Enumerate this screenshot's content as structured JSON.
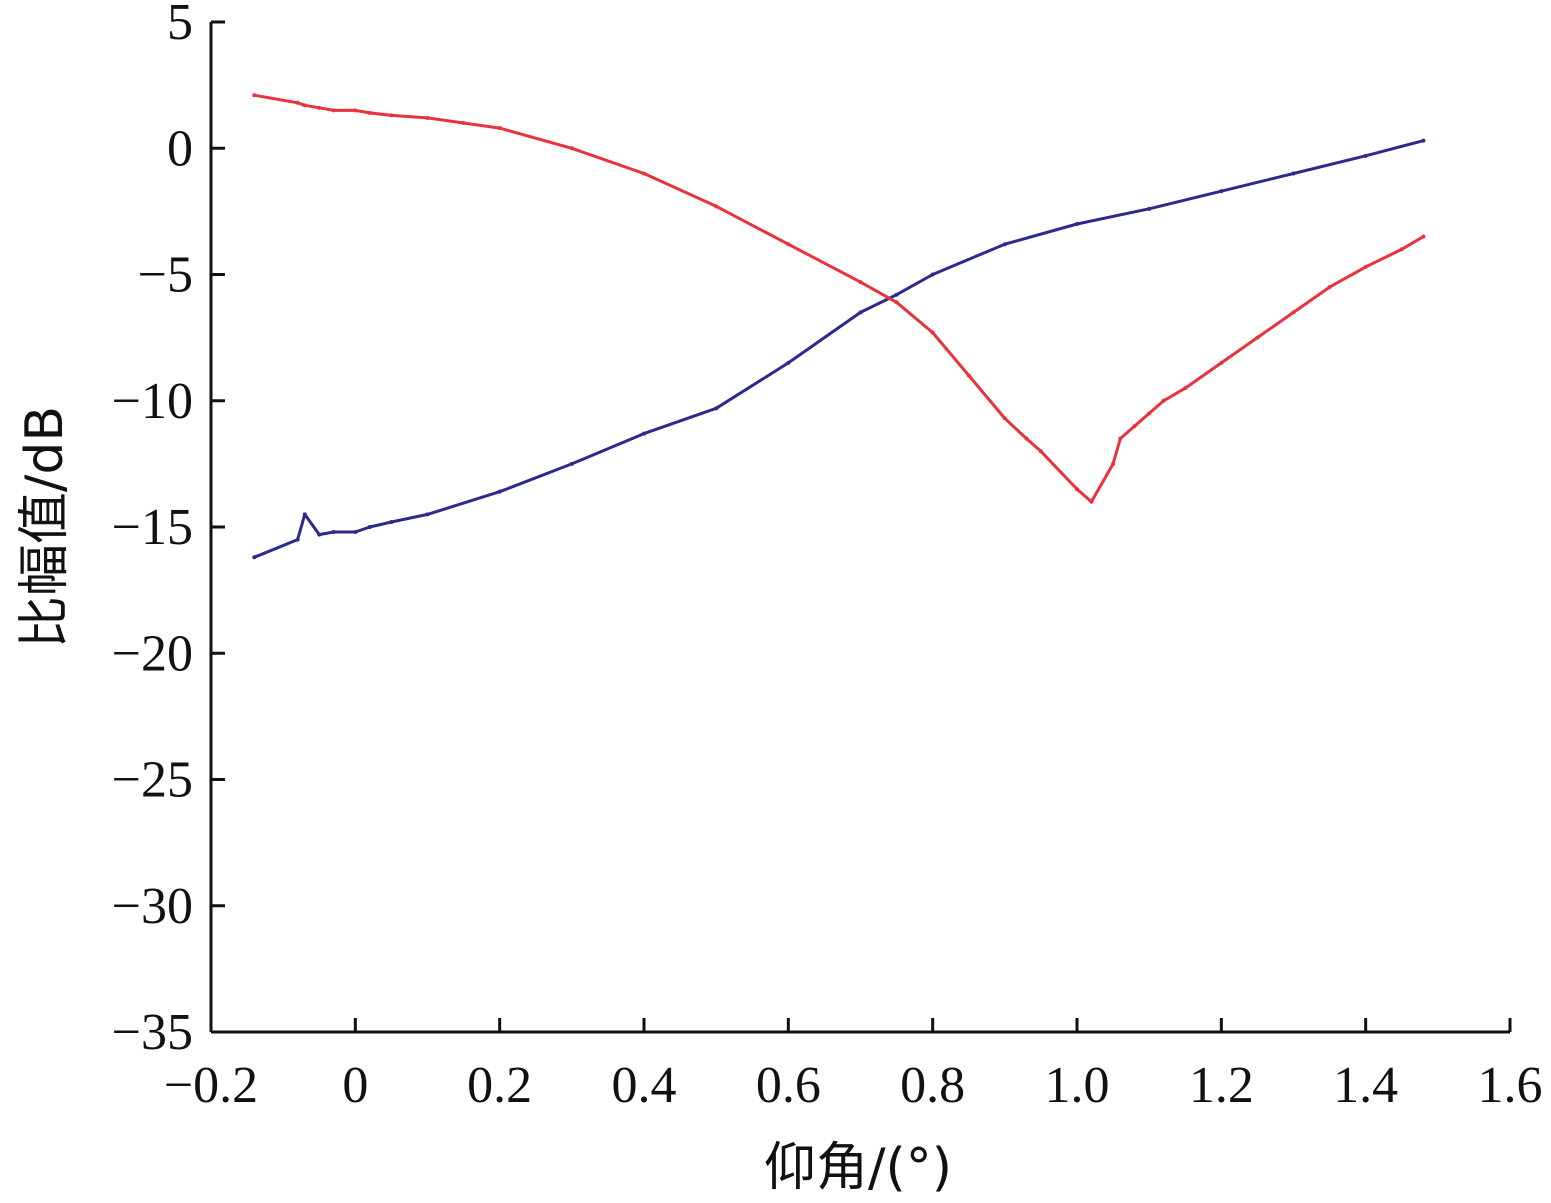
{
  "chart_data": {
    "type": "line",
    "title": "",
    "xlabel": "仰角/(°)",
    "ylabel": "比幅值/dB",
    "xlim": [
      -0.2,
      1.6
    ],
    "ylim": [
      -35,
      5
    ],
    "x_ticks": [
      -0.2,
      0,
      0.2,
      0.4,
      0.6,
      0.8,
      1.0,
      1.2,
      1.4,
      1.6
    ],
    "x_tick_labels": [
      "−0.2",
      "0",
      "0.2",
      "0.4",
      "0.6",
      "0.8",
      "1.0",
      "1.2",
      "1.4",
      "1.6"
    ],
    "y_ticks": [
      5,
      0,
      -5,
      -10,
      -15,
      -20,
      -25,
      -30,
      -35
    ],
    "y_tick_labels": [
      "5",
      "0",
      "−5",
      "−10",
      "−15",
      "−20",
      "−25",
      "−30",
      "−35"
    ],
    "grid": false,
    "legend": "none",
    "series": [
      {
        "color": "#2e2a8c",
        "x": [
          -0.14,
          -0.08,
          -0.07,
          -0.05,
          -0.03,
          0.0,
          0.02,
          0.05,
          0.1,
          0.2,
          0.3,
          0.4,
          0.5,
          0.6,
          0.7,
          0.75,
          0.8,
          0.9,
          1.0,
          1.1,
          1.2,
          1.3,
          1.4,
          1.48
        ],
        "y": [
          -16.2,
          -15.5,
          -14.5,
          -15.3,
          -15.2,
          -15.2,
          -15.0,
          -14.8,
          -14.5,
          -13.6,
          -12.5,
          -11.3,
          -10.3,
          -8.5,
          -6.5,
          -5.8,
          -5.0,
          -3.8,
          -3.0,
          -2.4,
          -1.7,
          -1.0,
          -0.3,
          0.3
        ]
      },
      {
        "color": "#e8333c",
        "x": [
          -0.14,
          -0.08,
          -0.07,
          -0.05,
          -0.03,
          0.0,
          0.02,
          0.05,
          0.1,
          0.15,
          0.2,
          0.3,
          0.4,
          0.5,
          0.6,
          0.7,
          0.75,
          0.8,
          0.85,
          0.9,
          0.93,
          0.95,
          1.0,
          1.02,
          1.05,
          1.06,
          1.08,
          1.1,
          1.12,
          1.15,
          1.2,
          1.25,
          1.3,
          1.35,
          1.4,
          1.45,
          1.48
        ],
        "y": [
          2.1,
          1.8,
          1.7,
          1.6,
          1.5,
          1.5,
          1.4,
          1.3,
          1.2,
          1.0,
          0.8,
          0.0,
          -1.0,
          -2.3,
          -3.8,
          -5.3,
          -6.1,
          -7.3,
          -9.0,
          -10.7,
          -11.5,
          -12.0,
          -13.5,
          -14.0,
          -12.5,
          -11.5,
          -11.0,
          -10.5,
          -10.0,
          -9.5,
          -8.5,
          -7.5,
          -6.5,
          -5.5,
          -4.7,
          -4.0,
          -3.5
        ]
      }
    ]
  }
}
